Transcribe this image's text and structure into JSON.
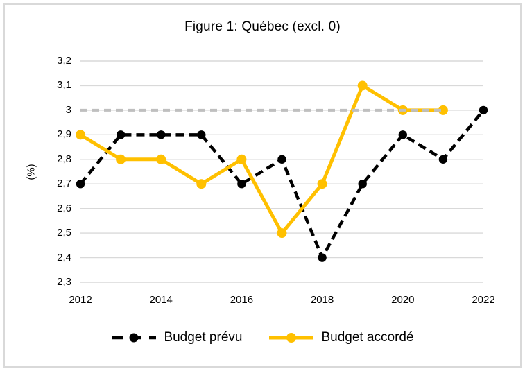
{
  "chart_data": {
    "type": "line",
    "title": "Figure 1: Québec (excl. 0)",
    "ylabel": "(%)",
    "x": [
      2012,
      2013,
      2014,
      2015,
      2016,
      2017,
      2018,
      2019,
      2020,
      2021,
      2022
    ],
    "x_ticks": [
      {
        "value": 2012,
        "label": "2012"
      },
      {
        "value": 2014,
        "label": "2014"
      },
      {
        "value": 2016,
        "label": "2016"
      },
      {
        "value": 2018,
        "label": "2018"
      },
      {
        "value": 2020,
        "label": "2020"
      },
      {
        "value": 2022,
        "label": "2022"
      }
    ],
    "y_ticks": [
      {
        "value": 3.2,
        "label": "3,2"
      },
      {
        "value": 3.1,
        "label": "3,1"
      },
      {
        "value": 3.0,
        "label": "3"
      },
      {
        "value": 2.9,
        "label": "2,9"
      },
      {
        "value": 2.8,
        "label": "2,8"
      },
      {
        "value": 2.7,
        "label": "2,7"
      },
      {
        "value": 2.6,
        "label": "2,6"
      },
      {
        "value": 2.5,
        "label": "2,5"
      },
      {
        "value": 2.4,
        "label": "2,4"
      },
      {
        "value": 2.3,
        "label": "2,3"
      }
    ],
    "ylim": [
      2.3,
      3.2
    ],
    "grid": true,
    "colors": {
      "gridline": "#d9d9d9",
      "reference": "#bfbfbf",
      "text": "#000000"
    },
    "legend_position": "bottom",
    "series": [
      {
        "name": "Budget prévu",
        "color": "#000000",
        "line_style": "dashed",
        "marker": "circle",
        "values": [
          2.7,
          2.9,
          2.9,
          2.9,
          2.7,
          2.8,
          2.4,
          2.7,
          2.9,
          2.8,
          3.0
        ]
      },
      {
        "name": "Budget accordé",
        "color": "#FFC000",
        "line_style": "solid",
        "marker": "circle",
        "values": [
          2.9,
          2.8,
          2.8,
          2.7,
          2.8,
          2.5,
          2.7,
          3.1,
          3.0,
          3.0,
          null
        ]
      }
    ],
    "reference_line": {
      "value": 3.0,
      "x_start": 2012,
      "x_end": 2021,
      "style": "dashed",
      "color": "#bfbfbf"
    }
  }
}
